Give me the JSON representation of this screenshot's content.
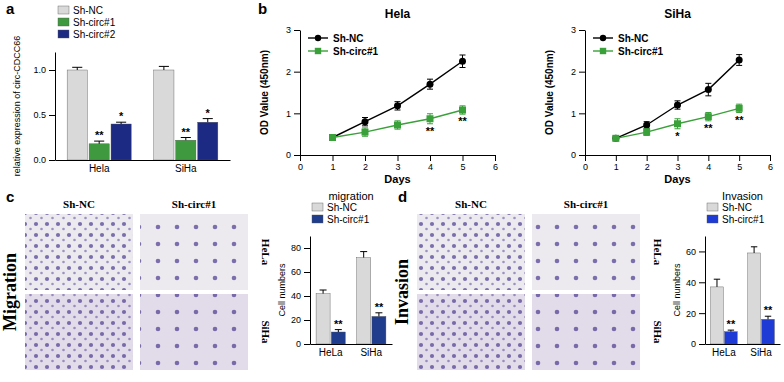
{
  "chart_data": [
    {
      "type": "bar",
      "panel_label": "a",
      "ylabel": "relative expression of circ-CDCC66",
      "categories": [
        "Hela",
        "SiHa"
      ],
      "ylim": [
        0,
        1.2
      ],
      "yticks": [
        {
          "value": 0,
          "label": "0.0"
        },
        {
          "value": 0.5,
          "label": "0.5"
        },
        {
          "value": 1,
          "label": "1.0"
        }
      ],
      "legend": "top",
      "series": [
        {
          "name": "Sh-NC",
          "color": "#d9d9d9",
          "values": [
            1.0,
            1.0
          ],
          "errors": [
            0.03,
            0.04
          ]
        },
        {
          "name": "Sh-circ#1",
          "color": "#3f9a3f",
          "values": [
            0.18,
            0.22
          ],
          "errors": [
            0.03,
            0.03
          ],
          "annotations": [
            "**",
            "**"
          ]
        },
        {
          "name": "Sh-circ#2",
          "color": "#1c2a84",
          "values": [
            0.4,
            0.42
          ],
          "errors": [
            0.02,
            0.04
          ],
          "annotations": [
            "*",
            "*"
          ]
        }
      ]
    },
    {
      "type": "line",
      "panel_label": "b",
      "title": "Hela",
      "xlabel": "Days",
      "ylabel": "OD Value (450nm)",
      "x": [
        1,
        2,
        3,
        4,
        5
      ],
      "xlim": [
        0,
        6
      ],
      "xticks": [
        0,
        1,
        2,
        3,
        4,
        5,
        6
      ],
      "ylim": [
        0,
        3
      ],
      "yticks": [
        0,
        1,
        2,
        3
      ],
      "legend": "top-left",
      "series": [
        {
          "name": "Sh-NC",
          "color": "#000000",
          "marker": "circle",
          "values": [
            0.42,
            0.8,
            1.18,
            1.7,
            2.25
          ],
          "errors": [
            0.05,
            0.1,
            0.1,
            0.12,
            0.15
          ]
        },
        {
          "name": "Sh-circ#1",
          "color": "#3aa13a",
          "marker": "square",
          "values": [
            0.42,
            0.55,
            0.72,
            0.87,
            1.08
          ],
          "errors": [
            0.05,
            0.1,
            0.1,
            0.12,
            0.1
          ],
          "annotations": [
            null,
            null,
            null,
            "**",
            "**"
          ]
        }
      ]
    },
    {
      "type": "line",
      "title": "SiHa",
      "xlabel": "Days",
      "ylabel": "OD Value (450nm)",
      "x": [
        1,
        2,
        3,
        4,
        5
      ],
      "xlim": [
        0,
        6
      ],
      "xticks": [
        0,
        1,
        2,
        3,
        4,
        5,
        6
      ],
      "ylim": [
        0,
        3
      ],
      "yticks": [
        0,
        1,
        2,
        3
      ],
      "legend": "top-left",
      "series": [
        {
          "name": "Sh-NC",
          "color": "#000000",
          "marker": "circle",
          "values": [
            0.4,
            0.72,
            1.2,
            1.57,
            2.28
          ],
          "errors": [
            0.05,
            0.08,
            0.1,
            0.15,
            0.13
          ]
        },
        {
          "name": "Sh-circ#1",
          "color": "#3aa13a",
          "marker": "square",
          "values": [
            0.4,
            0.55,
            0.75,
            0.92,
            1.12
          ],
          "errors": [
            0.05,
            0.08,
            0.12,
            0.1,
            0.1
          ],
          "annotations": [
            null,
            null,
            "*",
            "**",
            "**"
          ]
        }
      ]
    },
    {
      "type": "bar",
      "title": "migration",
      "ylabel": "Cell numbers",
      "categories": [
        "HeLa",
        "SiHa"
      ],
      "ylim": [
        0,
        90
      ],
      "yticks": [
        0,
        20,
        40,
        60,
        80
      ],
      "legend": "top",
      "series": [
        {
          "name": "Sh-NC",
          "color": "#d9d9d9",
          "values": [
            42,
            72
          ],
          "errors": [
            3,
            5
          ]
        },
        {
          "name": "Sh-circ#1",
          "color": "#1f3d8c",
          "values": [
            10,
            23
          ],
          "errors": [
            2,
            3
          ],
          "annotations": [
            "**",
            "**"
          ]
        }
      ]
    },
    {
      "type": "bar",
      "title": "Invasion",
      "ylabel": "Cell numbers",
      "categories": [
        "HeLa",
        "SiHa"
      ],
      "ylim": [
        0,
        70
      ],
      "yticks": [
        0,
        20,
        40,
        60
      ],
      "legend": "top",
      "series": [
        {
          "name": "Sh-NC",
          "color": "#d9d9d9",
          "values": [
            37,
            59
          ],
          "errors": [
            5,
            4
          ]
        },
        {
          "name": "Sh-circ#1",
          "color": "#1f3bd6",
          "values": [
            8,
            16
          ],
          "errors": [
            1,
            2
          ],
          "annotations": [
            "**",
            "**"
          ]
        }
      ]
    }
  ],
  "image_panels": [
    {
      "panel_label": "c",
      "side_label": "Migration",
      "column_labels": [
        "Sh-NC",
        "Sh-circ#1"
      ],
      "row_labels": [
        "HeLa",
        "SiHa"
      ]
    },
    {
      "panel_label": "d",
      "side_label": "Invasion",
      "column_labels": [
        "Sh-NC",
        "Sh-circ#1"
      ],
      "row_labels": [
        "HeLa",
        "SiHa"
      ]
    }
  ]
}
